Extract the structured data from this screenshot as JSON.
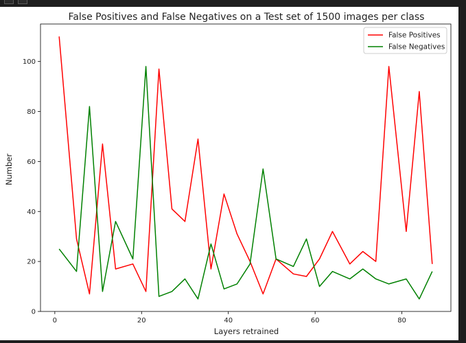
{
  "window": {
    "toolbar_icons": [
      "square-icon",
      "square-icon"
    ]
  },
  "chart_data": {
    "type": "line",
    "title": "False Positives and False Negatives on a Test set of 1500 images per class",
    "xlabel": "Layers retrained",
    "ylabel": "Number",
    "xlim": [
      -3.3,
      91.3
    ],
    "ylim": [
      0,
      115
    ],
    "xticks": [
      0,
      20,
      40,
      60,
      80
    ],
    "yticks": [
      0,
      20,
      40,
      60,
      80,
      100
    ],
    "grid": false,
    "legend_position": "top-right",
    "x": [
      1,
      5,
      8,
      11,
      14,
      18,
      21,
      24,
      27,
      30,
      33,
      36,
      39,
      42,
      45,
      48,
      51,
      55,
      58,
      61,
      64,
      68,
      71,
      74,
      77,
      81,
      84,
      87
    ],
    "series": [
      {
        "name": "False Positives",
        "color": "#ff0000",
        "values": [
          110,
          29,
          7,
          67,
          17,
          19,
          8,
          97,
          41,
          36,
          69,
          17,
          47,
          31,
          20,
          7,
          21,
          15,
          14,
          21,
          32,
          19,
          24,
          20,
          98,
          32,
          88,
          19
        ]
      },
      {
        "name": "False Negatives",
        "color": "#008000",
        "values": [
          25,
          16,
          82,
          8,
          36,
          21,
          98,
          6,
          8,
          13,
          5,
          27,
          9,
          11,
          19,
          57,
          21,
          18,
          29,
          10,
          16,
          13,
          17,
          13,
          11,
          13,
          5,
          16
        ]
      }
    ]
  }
}
